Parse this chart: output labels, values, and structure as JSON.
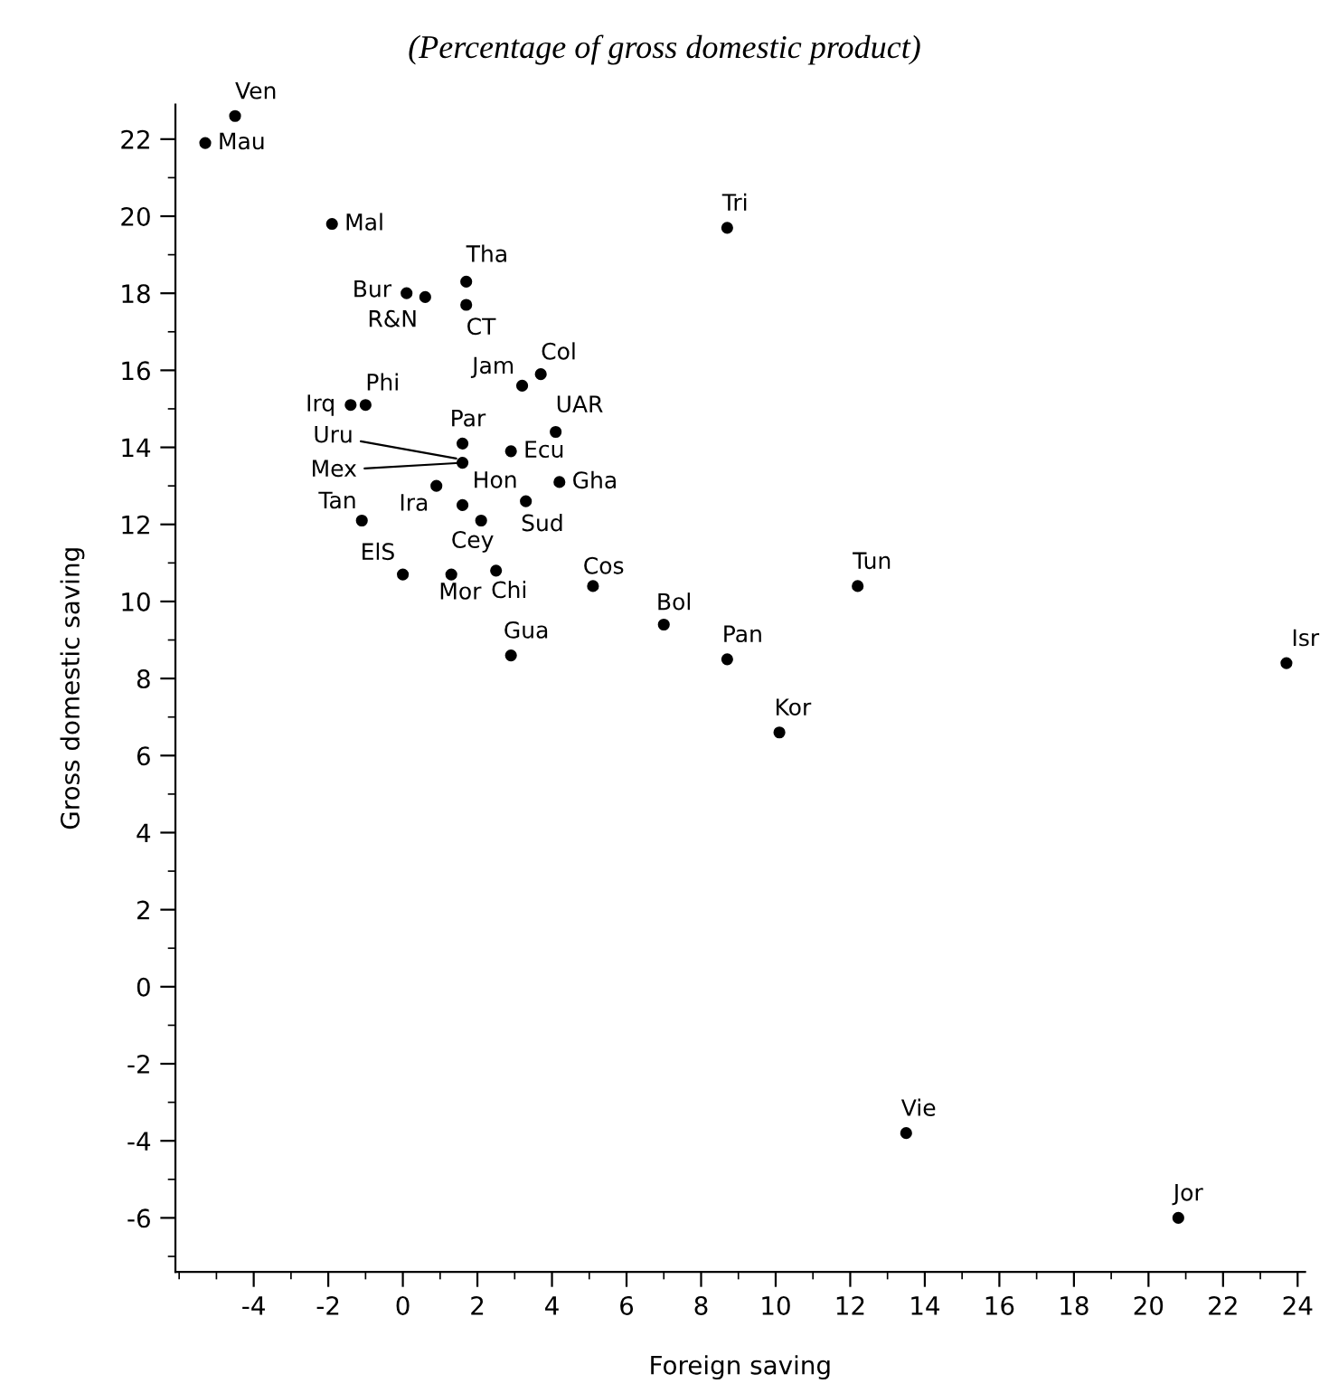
{
  "chart_data": {
    "type": "scatter",
    "title": "(Percentage of gross domestic product)",
    "xlabel": "Foreign saving",
    "ylabel": "Gross domestic saving",
    "xlim": [
      -6.1,
      24.2
    ],
    "ylim": [
      -7.4,
      22.9
    ],
    "xticks": [
      -4,
      -2,
      0,
      2,
      4,
      6,
      8,
      10,
      12,
      14,
      16,
      18,
      20,
      22,
      24
    ],
    "yticks": [
      -6,
      -4,
      -2,
      0,
      2,
      4,
      6,
      8,
      10,
      12,
      14,
      16,
      18,
      20,
      22
    ],
    "grid": false,
    "legend": false,
    "marker": "circle",
    "series": [
      {
        "color": "#000000",
        "x": [
          -4.5,
          -5.3,
          -1.9,
          1.7,
          0.1,
          0.6,
          1.7,
          3.2,
          3.7,
          -1.4,
          -1.0,
          4.1,
          1.6,
          null,
          1.6,
          2.9,
          4.2,
          0.9,
          1.6,
          3.3,
          2.1,
          -1.1,
          0.0,
          1.3,
          2.5,
          5.1,
          7.0,
          2.9,
          8.7,
          12.2,
          8.7,
          10.1,
          23.7,
          13.5,
          20.8
        ],
        "values": [
          22.6,
          21.9,
          19.8,
          18.3,
          18.0,
          17.9,
          17.7,
          15.6,
          15.9,
          15.1,
          15.1,
          14.4,
          14.1,
          null,
          13.6,
          13.9,
          13.1,
          13.0,
          12.5,
          12.6,
          12.1,
          12.1,
          10.7,
          10.7,
          10.8,
          10.4,
          9.4,
          8.6,
          19.7,
          10.4,
          8.5,
          6.6,
          8.4,
          -3.8,
          -6.0
        ]
      }
    ],
    "annotations": [
      {
        "text": "Ven",
        "x": -4.5,
        "y": 22.6
      },
      {
        "text": "Mau",
        "x": -5.3,
        "y": 21.9
      },
      {
        "text": "Mal",
        "x": -1.9,
        "y": 19.8
      },
      {
        "text": "Tha",
        "x": 1.7,
        "y": 18.3
      },
      {
        "text": "Bur",
        "x": 0.1,
        "y": 18.0
      },
      {
        "text": "R&N",
        "x": 0.6,
        "y": 17.9
      },
      {
        "text": "CT",
        "x": 1.7,
        "y": 17.7
      },
      {
        "text": "Jam",
        "x": 3.2,
        "y": 15.6
      },
      {
        "text": "Col",
        "x": 3.7,
        "y": 15.9
      },
      {
        "text": "Irq",
        "x": -1.4,
        "y": 15.1
      },
      {
        "text": "Phi",
        "x": -1.0,
        "y": 15.1
      },
      {
        "text": "UAR",
        "x": 4.1,
        "y": 14.4
      },
      {
        "text": "Par",
        "x": 1.6,
        "y": 14.1
      },
      {
        "text": "Uru",
        "x": 1.5,
        "y": 13.7
      },
      {
        "text": "Mex",
        "x": 1.6,
        "y": 13.6
      },
      {
        "text": "Ecu",
        "x": 2.9,
        "y": 13.9
      },
      {
        "text": "Gha",
        "x": 4.2,
        "y": 13.1
      },
      {
        "text": "Ira",
        "x": 0.9,
        "y": 13.0
      },
      {
        "text": "Hon",
        "x": 1.6,
        "y": 12.5
      },
      {
        "text": "Sud",
        "x": 3.3,
        "y": 12.6
      },
      {
        "text": "Cey",
        "x": 2.1,
        "y": 12.1
      },
      {
        "text": "Tan",
        "x": -1.1,
        "y": 12.1
      },
      {
        "text": "ElS",
        "x": 0.0,
        "y": 10.7
      },
      {
        "text": "Mor",
        "x": 1.3,
        "y": 10.7
      },
      {
        "text": "Chi",
        "x": 2.5,
        "y": 10.8
      },
      {
        "text": "Cos",
        "x": 5.1,
        "y": 10.4
      },
      {
        "text": "Bol",
        "x": 7.0,
        "y": 9.4
      },
      {
        "text": "Gua",
        "x": 2.9,
        "y": 8.6
      },
      {
        "text": "Tri",
        "x": 8.7,
        "y": 19.7
      },
      {
        "text": "Tun",
        "x": 12.2,
        "y": 10.4
      },
      {
        "text": "Pan",
        "x": 8.7,
        "y": 8.5
      },
      {
        "text": "Kor",
        "x": 10.1,
        "y": 6.6
      },
      {
        "text": "Isr",
        "x": 23.7,
        "y": 8.4
      },
      {
        "text": "Vie",
        "x": 13.5,
        "y": -3.8
      },
      {
        "text": "Jor",
        "x": 20.8,
        "y": -6.0
      }
    ]
  }
}
